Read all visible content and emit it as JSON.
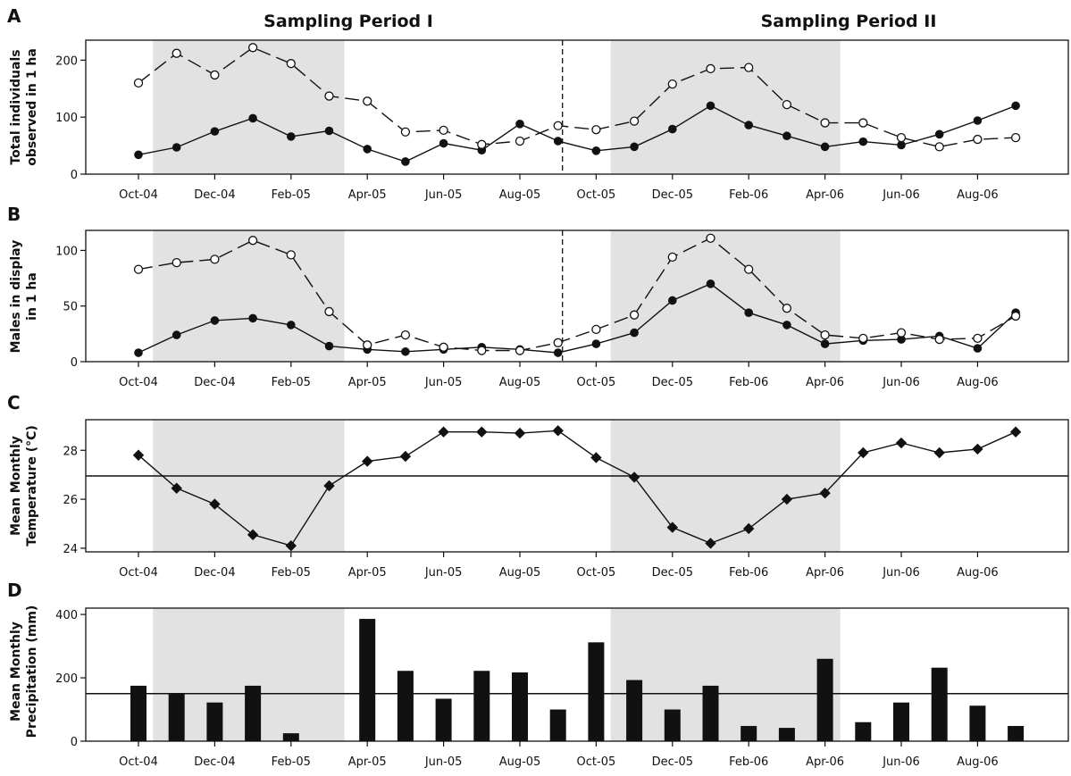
{
  "figure": {
    "period_titles": [
      "Sampling Period I",
      "Sampling Period II"
    ]
  },
  "chart_data": [
    {
      "panel": "A",
      "type": "line",
      "ylabel": [
        "Total individuals",
        "observed in 1 ha"
      ],
      "ylim": [
        0,
        235
      ],
      "yticks": [
        0,
        100,
        200
      ],
      "x": [
        "Oct-04",
        "Nov-04",
        "Dec-04",
        "Jan-05",
        "Feb-05",
        "Mar-05",
        "Apr-05",
        "May-05",
        "Jun-05",
        "Jul-05",
        "Aug-05",
        "Sep-05",
        "Oct-05",
        "Nov-05",
        "Dec-05",
        "Jan-06",
        "Feb-06",
        "Mar-06",
        "Apr-06",
        "May-06",
        "Jun-06",
        "Jul-06",
        "Aug-06",
        "Sep-06"
      ],
      "xtick_labels": [
        "Oct-04",
        "Dec-04",
        "Feb-05",
        "Apr-05",
        "Jun-05",
        "Aug-05",
        "Oct-05",
        "Dec-05",
        "Feb-06",
        "Apr-06",
        "Jun-06",
        "Aug-06"
      ],
      "shaded_periods": [
        [
          "Nov-04",
          "Mar-05"
        ],
        [
          "Nov-05",
          "Apr-06"
        ]
      ],
      "divider": "Sep-05",
      "series": [
        {
          "marker": "filled-circle",
          "line": "solid",
          "values": [
            34,
            47,
            75,
            98,
            66,
            76,
            44,
            22,
            54,
            42,
            88,
            58,
            41,
            48,
            79,
            120,
            86,
            67,
            48,
            57,
            51,
            70,
            94,
            120
          ]
        },
        {
          "marker": "open-circle",
          "line": "dashed",
          "values": [
            160,
            212,
            174,
            222,
            194,
            137,
            128,
            74,
            77,
            52,
            58,
            85,
            78,
            93,
            158,
            185,
            187,
            122,
            90,
            90,
            64,
            48,
            61,
            64
          ]
        }
      ]
    },
    {
      "panel": "B",
      "type": "line",
      "ylabel": [
        "Males in display",
        "in 1 ha"
      ],
      "ylim": [
        0,
        118
      ],
      "yticks": [
        0,
        50,
        100
      ],
      "x": [
        "Oct-04",
        "Nov-04",
        "Dec-04",
        "Jan-05",
        "Feb-05",
        "Mar-05",
        "Apr-05",
        "May-05",
        "Jun-05",
        "Jul-05",
        "Aug-05",
        "Sep-05",
        "Oct-05",
        "Nov-05",
        "Dec-05",
        "Jan-06",
        "Feb-06",
        "Mar-06",
        "Apr-06",
        "May-06",
        "Jun-06",
        "Jul-06",
        "Aug-06",
        "Sep-06"
      ],
      "xtick_labels": [
        "Oct-04",
        "Dec-04",
        "Feb-05",
        "Apr-05",
        "Jun-05",
        "Aug-05",
        "Oct-05",
        "Dec-05",
        "Feb-06",
        "Apr-06",
        "Jun-06",
        "Aug-06"
      ],
      "shaded_periods": [
        [
          "Nov-04",
          "Mar-05"
        ],
        [
          "Nov-05",
          "Apr-06"
        ]
      ],
      "divider": "Sep-05",
      "series": [
        {
          "marker": "filled-circle",
          "line": "solid",
          "values": [
            8,
            24,
            37,
            39,
            33,
            14,
            11,
            9,
            11,
            13,
            11,
            8,
            16,
            26,
            55,
            70,
            44,
            33,
            16,
            19,
            20,
            23,
            12,
            44
          ]
        },
        {
          "marker": "open-circle",
          "line": "dashed",
          "values": [
            83,
            89,
            92,
            109,
            96,
            45,
            15,
            24,
            13,
            10,
            10,
            17,
            29,
            42,
            94,
            111,
            83,
            48,
            24,
            21,
            26,
            20,
            21,
            41
          ]
        }
      ]
    },
    {
      "panel": "C",
      "type": "line",
      "ylabel": [
        "Mean Monthly",
        "Temperature (°C)"
      ],
      "ylim": [
        23.85,
        29.25
      ],
      "yticks": [
        24,
        26,
        28
      ],
      "x": [
        "Oct-04",
        "Nov-04",
        "Dec-04",
        "Jan-05",
        "Feb-05",
        "Mar-05",
        "Apr-05",
        "May-05",
        "Jun-05",
        "Jul-05",
        "Aug-05",
        "Sep-05",
        "Oct-05",
        "Nov-05",
        "Dec-05",
        "Jan-06",
        "Feb-06",
        "Mar-06",
        "Apr-06",
        "May-06",
        "Jun-06",
        "Jul-06",
        "Aug-06",
        "Sep-06"
      ],
      "xtick_labels": [
        "Oct-04",
        "Dec-04",
        "Feb-05",
        "Apr-05",
        "Jun-05",
        "Aug-05",
        "Oct-05",
        "Dec-05",
        "Feb-06",
        "Apr-06",
        "Jun-06",
        "Aug-06"
      ],
      "shaded_periods": [
        [
          "Nov-04",
          "Mar-05"
        ],
        [
          "Nov-05",
          "Apr-06"
        ]
      ],
      "reference_line": 26.95,
      "series": [
        {
          "marker": "filled-diamond",
          "line": "solid",
          "values": [
            27.8,
            26.45,
            25.8,
            24.55,
            24.1,
            26.55,
            27.55,
            27.75,
            28.75,
            28.75,
            28.7,
            28.8,
            27.7,
            26.9,
            24.85,
            24.2,
            24.8,
            26.0,
            26.25,
            27.9,
            28.3,
            27.9,
            28.05,
            28.75
          ]
        }
      ]
    },
    {
      "panel": "D",
      "type": "bar",
      "ylabel": [
        "Mean Monthly",
        "Precipitation (mm)"
      ],
      "ylim": [
        0,
        420
      ],
      "yticks": [
        0,
        200,
        400
      ],
      "x": [
        "Oct-04",
        "Nov-04",
        "Dec-04",
        "Jan-05",
        "Feb-05",
        "Mar-05",
        "Apr-05",
        "May-05",
        "Jun-05",
        "Jul-05",
        "Aug-05",
        "Sep-05",
        "Oct-05",
        "Nov-05",
        "Dec-05",
        "Jan-06",
        "Feb-06",
        "Mar-06",
        "Apr-06",
        "May-06",
        "Jun-06",
        "Jul-06",
        "Aug-06",
        "Sep-06"
      ],
      "xtick_labels": [
        "Oct-04",
        "Dec-04",
        "Feb-05",
        "Apr-05",
        "Jun-05",
        "Aug-05",
        "Oct-05",
        "Dec-05",
        "Feb-06",
        "Apr-06",
        "Jun-06",
        "Aug-06"
      ],
      "shaded_periods": [
        [
          "Nov-04",
          "Mar-05"
        ],
        [
          "Nov-05",
          "Apr-06"
        ]
      ],
      "reference_line": 150,
      "series": [
        {
          "values": [
            175,
            150,
            122,
            175,
            25,
            0,
            386,
            222,
            134,
            222,
            217,
            100,
            312,
            193,
            100,
            175,
            48,
            42,
            260,
            60,
            122,
            232,
            112,
            48
          ]
        }
      ]
    }
  ]
}
